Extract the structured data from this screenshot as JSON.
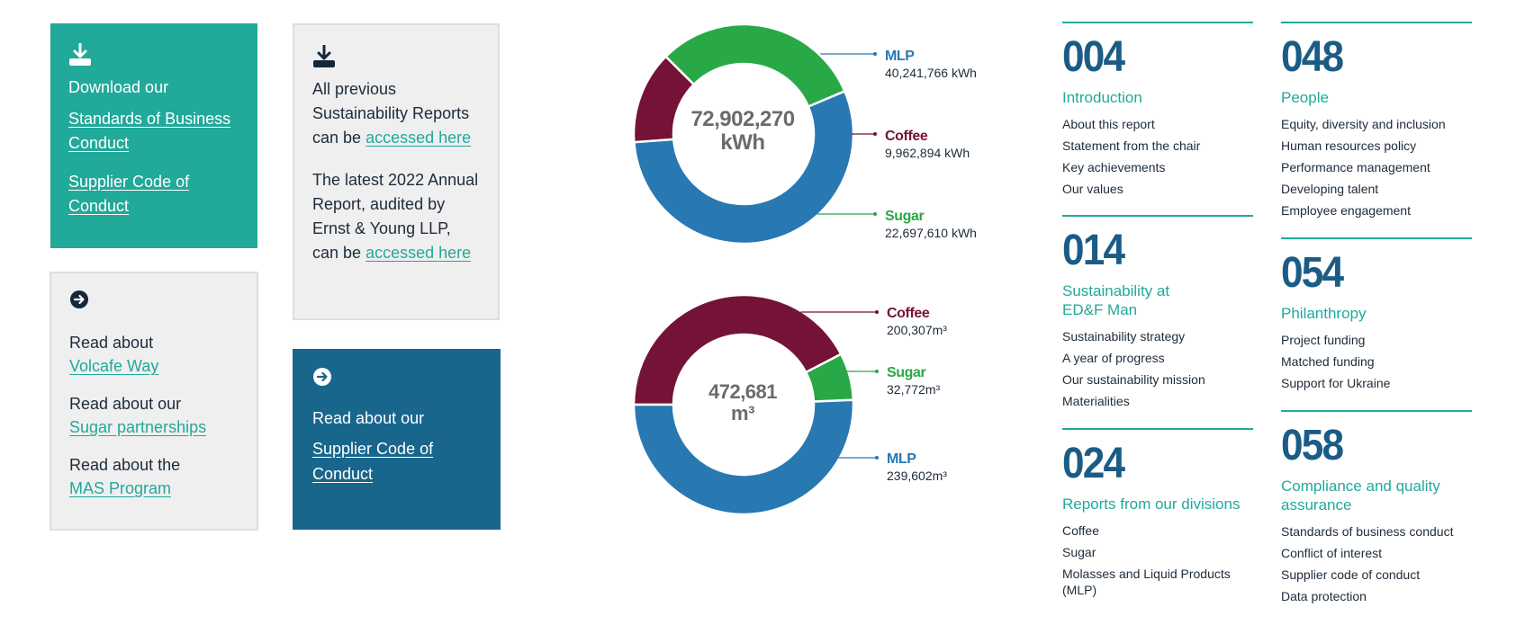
{
  "download_card": {
    "icon": "download-icon",
    "intro": "Download our",
    "links": [
      "Standards of Business Conduct",
      "Supplier Code of Conduct"
    ]
  },
  "previous_reports_card": {
    "icon": "download-icon",
    "para1_text": "All previous Sustainability Reports can be",
    "para1_link": "accessed here",
    "para2_text": "The latest 2022 Annual Report, audited by Ernst & Young LLP, can be",
    "para2_link": "accessed here"
  },
  "read_about_card": {
    "icon": "arrow-right-circle-icon",
    "items": [
      {
        "text": "Read about",
        "link": "Volcafe Way"
      },
      {
        "text": "Read about our",
        "link": "Sugar partnerships"
      },
      {
        "text": "Read about the",
        "link": "MAS Program"
      }
    ]
  },
  "supplier_card": {
    "icon": "arrow-right-circle-icon",
    "intro": "Read about our",
    "link": "Supplier Code of Conduct"
  },
  "colors": {
    "teal": "#21a99a",
    "dark_blue": "#19668d",
    "mlp": "#2878b2",
    "coffee": "#751238",
    "sugar": "#29a847"
  },
  "chart_data": [
    {
      "type": "pie",
      "donut": true,
      "center_value": "72,902,270",
      "center_unit": "kWh",
      "series": [
        {
          "name": "MLP",
          "value": 40241766,
          "label": "40,241,766 kWh",
          "color": "#2878b2"
        },
        {
          "name": "Coffee",
          "value": 9962894,
          "label": "9,962,894 kWh",
          "color": "#751238"
        },
        {
          "name": "Sugar",
          "value": 22697610,
          "label": "22,697,610 kWh",
          "color": "#29a847"
        }
      ],
      "legend": "right"
    },
    {
      "type": "pie",
      "donut": true,
      "center_value": "472,681",
      "center_unit": "m³",
      "series": [
        {
          "name": "Coffee",
          "value": 200307,
          "label": "200,307m³",
          "color": "#751238"
        },
        {
          "name": "Sugar",
          "value": 32772,
          "label": "32,772m³",
          "color": "#29a847"
        },
        {
          "name": "MLP",
          "value": 239602,
          "label": "239,602m³",
          "color": "#2878b2"
        }
      ],
      "legend": "right"
    }
  ],
  "contents": [
    {
      "num": "004",
      "heading": "Introduction",
      "items": [
        "About this report",
        "Statement from the chair",
        "Key achievements",
        "Our values"
      ]
    },
    {
      "num": "014",
      "heading": "Sustainability at ED&F Man",
      "items": [
        "Sustainability strategy",
        "A year of progress",
        "Our sustainability mission",
        "Materialities"
      ]
    },
    {
      "num": "024",
      "heading": "Reports from our divisions",
      "items": [
        "Coffee",
        "Sugar",
        "Molasses and Liquid Products (MLP)"
      ]
    },
    {
      "num": "048",
      "heading": "People",
      "items": [
        "Equity, diversity and inclusion",
        "Human resources policy",
        "Performance management",
        "Developing talent",
        "Employee engagement"
      ]
    },
    {
      "num": "054",
      "heading": "Philanthropy",
      "items": [
        "Project funding",
        "Matched funding",
        "Support for Ukraine"
      ]
    },
    {
      "num": "058",
      "heading": "Compliance and quality assurance",
      "items": [
        "Standards of business conduct",
        "Conflict of interest",
        "Supplier code of conduct",
        "Data protection"
      ]
    }
  ]
}
